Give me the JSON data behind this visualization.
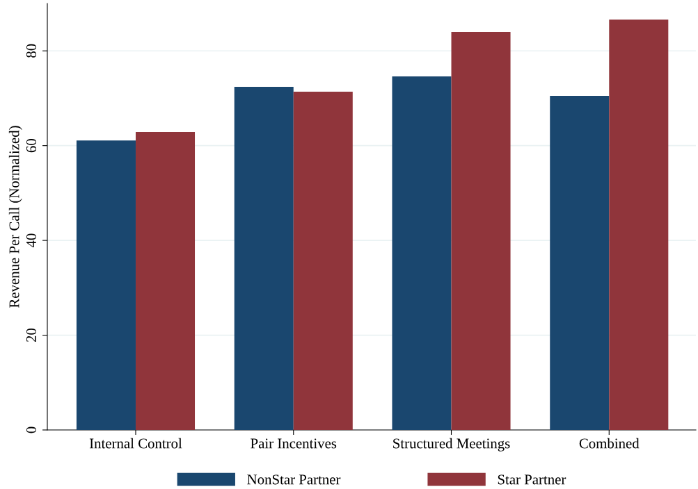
{
  "chart_data": {
    "type": "bar",
    "ylabel": "Revenue Per Call (Normalized)",
    "categories": [
      "Internal Control",
      "Pair Incentives",
      "Structured Meetings",
      "Combined"
    ],
    "series": [
      {
        "name": "NonStar Partner",
        "color": "#1a476f",
        "values": [
          61.1,
          72.4,
          74.6,
          70.5
        ]
      },
      {
        "name": "Star Partner",
        "color": "#90353b",
        "values": [
          62.9,
          71.4,
          84.0,
          86.6
        ]
      }
    ],
    "ylim": [
      0,
      90
    ],
    "yticks": [
      0,
      20,
      40,
      60,
      80
    ],
    "grid": "y",
    "legend": "bottom"
  }
}
